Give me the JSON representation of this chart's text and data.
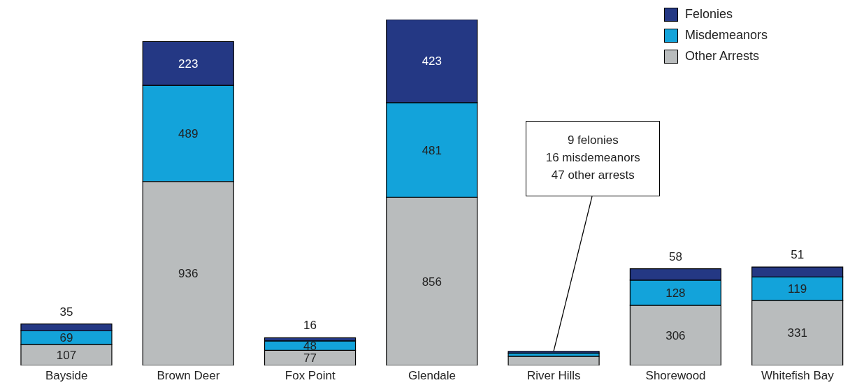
{
  "chart_data": {
    "type": "bar",
    "stacked": true,
    "categories": [
      "Bayside",
      "Brown Deer",
      "Fox Point",
      "Glendale",
      "River Hills",
      "Shorewood",
      "Whitefish Bay"
    ],
    "series": [
      {
        "name": "Other Arrests",
        "color": "#b9bcbd",
        "values": [
          107,
          936,
          77,
          856,
          47,
          306,
          331
        ],
        "value_labels": [
          "107",
          "936",
          "77",
          "856",
          null,
          "306",
          "331"
        ]
      },
      {
        "name": "Misdemeanors",
        "color": "#13a3da",
        "values": [
          69,
          489,
          48,
          481,
          16,
          128,
          119
        ],
        "value_labels": [
          "69",
          "489",
          "48",
          "481",
          null,
          "128",
          "119"
        ]
      },
      {
        "name": "Felonies",
        "color": "#243884",
        "values": [
          35,
          223,
          16,
          423,
          9,
          58,
          51
        ],
        "value_labels": [
          "35",
          "223",
          "16",
          "423",
          null,
          "58",
          "51"
        ]
      }
    ],
    "ylim": [
      0,
      1760
    ],
    "legend": "top right",
    "annotations": [
      {
        "text": "9 felonies\n16 misdemeanors\n47 other arrests",
        "x": "River Hills",
        "y": 72
      }
    ]
  }
}
